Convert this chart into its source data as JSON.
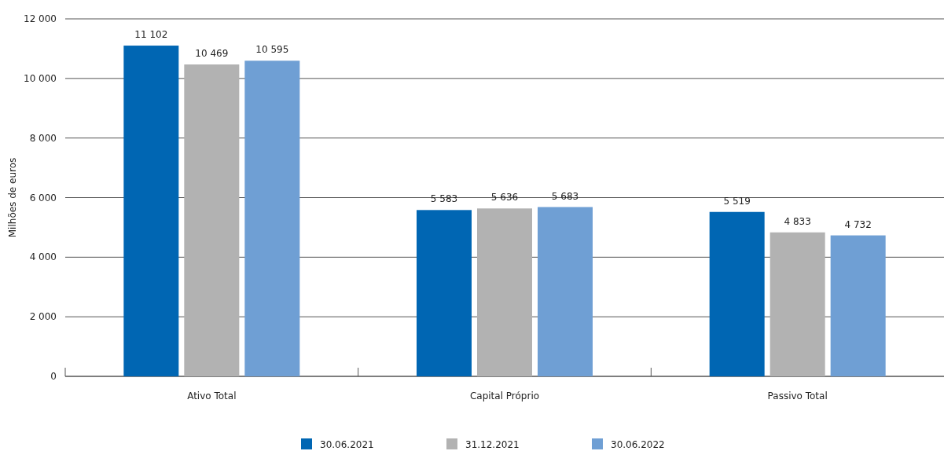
{
  "chart_data": {
    "type": "bar",
    "ylabel": "Milhões de euros",
    "categories": [
      "Ativo Total",
      "Capital Próprio",
      "Passivo Total"
    ],
    "series": [
      {
        "name": "30.06.2021",
        "color": "#0066b3",
        "values": [
          11102,
          5583,
          5519
        ],
        "value_labels": [
          "11 102",
          "5 583",
          "5 519"
        ]
      },
      {
        "name": "31.12.2021",
        "color": "#b2b2b2",
        "values": [
          10469,
          5636,
          4833
        ],
        "value_labels": [
          "10 469",
          "5 636",
          "4 833"
        ]
      },
      {
        "name": "30.06.2022",
        "color": "#6f9fd4",
        "values": [
          10595,
          5683,
          4732
        ],
        "value_labels": [
          "10 595",
          "5 683",
          "4 732"
        ]
      }
    ],
    "ylim": [
      0,
      12000
    ],
    "yticks": [
      {
        "value": 0,
        "label": "0"
      },
      {
        "value": 2000,
        "label": "2 000"
      },
      {
        "value": 4000,
        "label": "4 000"
      },
      {
        "value": 6000,
        "label": "6 000"
      },
      {
        "value": 8000,
        "label": "8 000"
      },
      {
        "value": 10000,
        "label": "10 000"
      },
      {
        "value": 12000,
        "label": "12 000"
      }
    ],
    "grid": "y",
    "legend": "bottom"
  }
}
